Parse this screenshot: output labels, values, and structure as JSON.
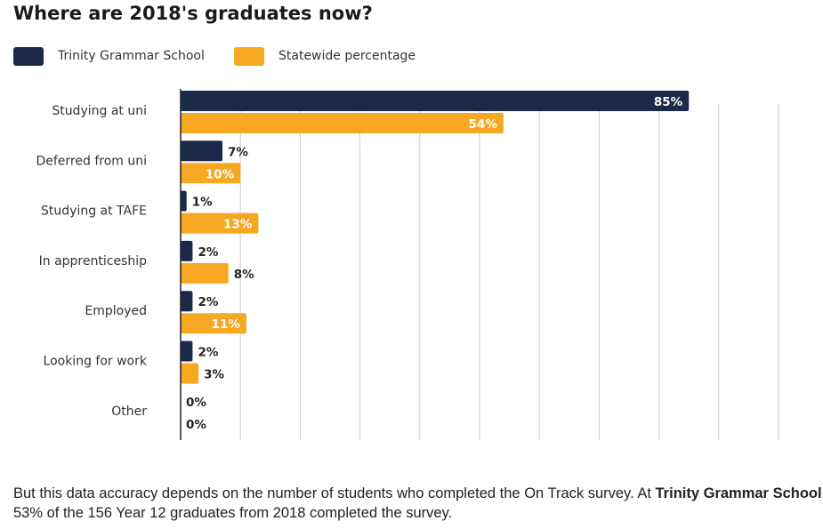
{
  "title": "Where are 2018's graduates now?",
  "colors": {
    "school": "#1b2a4a",
    "state": "#f6a823",
    "grid": "#cccccc",
    "axis": "#222222"
  },
  "chart_data": {
    "type": "bar",
    "orientation": "horizontal",
    "title": "Where are 2018's graduates now?",
    "categories": [
      "Studying at uni",
      "Deferred from uni",
      "Studying at TAFE",
      "In apprenticeship",
      "Employed",
      "Looking for work",
      "Other"
    ],
    "series": [
      {
        "name": "Trinity Grammar School",
        "color": "#1b2a4a",
        "values": [
          85,
          7,
          1,
          2,
          2,
          2,
          0
        ],
        "labels": [
          "85%",
          "7%",
          "1%",
          "2%",
          "2%",
          "2%",
          "0%"
        ]
      },
      {
        "name": "Statewide percentage",
        "color": "#f6a823",
        "values": [
          54,
          10,
          13,
          8,
          11,
          3,
          0
        ],
        "labels": [
          "54%",
          "10%",
          "13%",
          "8%",
          "11%",
          "3%",
          "0%"
        ]
      }
    ],
    "xlim": [
      0,
      100
    ],
    "grid": true,
    "legend_position": "top-left"
  },
  "footnote": {
    "part1": "But this data accuracy depends on the number of students who completed the On Track survey. At ",
    "school_name": "Trinity Grammar School",
    "part2": " 53% of the 156 Year 12 graduates from 2018 completed the survey."
  }
}
